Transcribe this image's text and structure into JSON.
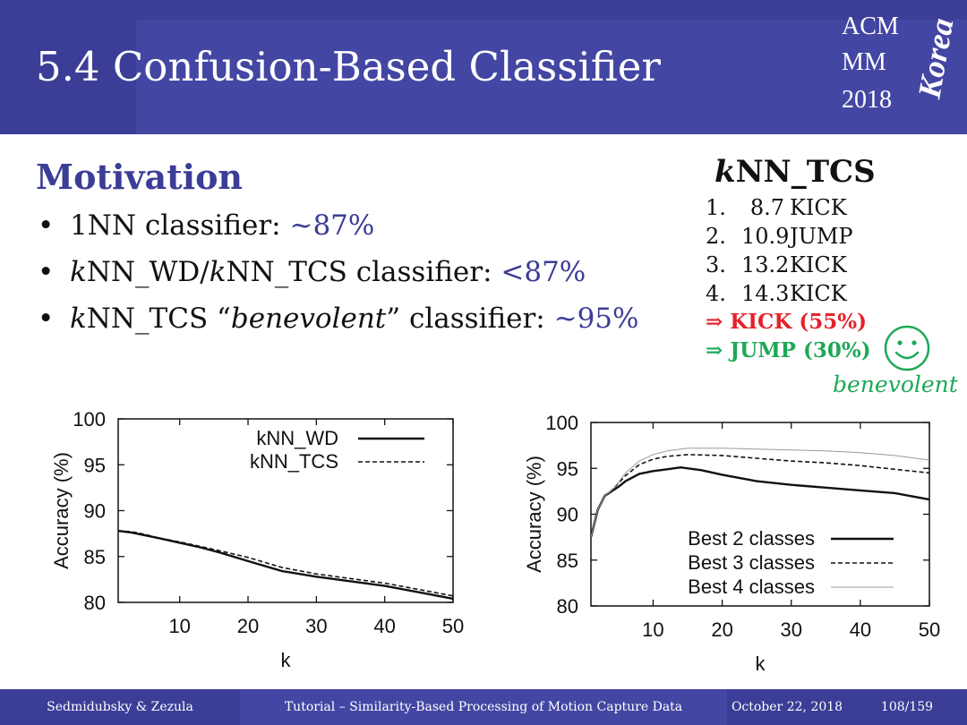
{
  "slide": {
    "title": "5.4 Confusion-Based Classifier",
    "logo": {
      "line1": "ACM",
      "line2": "MM",
      "line3": "2018",
      "script": "Korea"
    },
    "motivation": {
      "heading": "Motivation",
      "bullets": [
        {
          "k": "",
          "label": "1NN classifier: ",
          "value": "~87%"
        },
        {
          "k": "k",
          "label": "NN_WD/",
          "k2": "k",
          "label2": "NN_TCS classifier: ",
          "value": "<87%"
        },
        {
          "k": "k",
          "label": "NN_TCS “",
          "italic": "benevolent",
          "label2": "” classifier: ",
          "value": "~95%"
        }
      ]
    },
    "knn_tcs": {
      "title_k": "k",
      "title_rest": "NN_TCS",
      "ranking": [
        {
          "num": "1.",
          "dist": "8.7",
          "label": "KICK"
        },
        {
          "num": "2.",
          "dist": "10.9",
          "label": "JUMP"
        },
        {
          "num": "3.",
          "dist": "13.2",
          "label": "KICK"
        },
        {
          "num": "4.",
          "dist": "14.3",
          "label": "KICK"
        }
      ],
      "result_kick": "⇒ KICK (55%)",
      "result_jump": "⇒ JUMP (30%)",
      "benevolent": "benevolent",
      "colors": {
        "kick": "#e5222b",
        "jump": "#1fa857"
      }
    },
    "footer": {
      "authors": "Sedmidubsky & Zezula",
      "tutorial": "Tutorial – Similarity-Based Processing of Motion Capture Data",
      "date": "October 22, 2018",
      "page": "108/159"
    }
  },
  "chart_data": [
    {
      "type": "line",
      "xlabel": "k",
      "ylabel": "Accuracy (%)",
      "xlim": [
        1,
        50
      ],
      "ylim": [
        80,
        100
      ],
      "xticks": [
        10,
        20,
        30,
        40,
        50
      ],
      "yticks": [
        80,
        85,
        90,
        95,
        100
      ],
      "legend": "top-right",
      "series": [
        {
          "name": "kNN_WD",
          "style": "solid",
          "x": [
            1,
            3,
            5,
            7,
            10,
            13,
            16,
            20,
            25,
            30,
            35,
            40,
            45,
            50
          ],
          "y": [
            87.8,
            87.6,
            87.3,
            87.0,
            86.5,
            86.0,
            85.4,
            84.5,
            83.4,
            82.8,
            82.3,
            81.8,
            81.1,
            80.4
          ]
        },
        {
          "name": "kNN_TCS",
          "style": "dashed",
          "x": [
            1,
            3,
            5,
            7,
            10,
            13,
            16,
            20,
            25,
            30,
            35,
            40,
            45,
            50
          ],
          "y": [
            87.8,
            87.7,
            87.4,
            87.0,
            86.6,
            86.1,
            85.6,
            84.9,
            83.8,
            83.1,
            82.6,
            82.1,
            81.4,
            80.7
          ]
        }
      ]
    },
    {
      "type": "line",
      "xlabel": "k",
      "ylabel": "Accuracy (%)",
      "xlim": [
        1,
        50
      ],
      "ylim": [
        80,
        100
      ],
      "xticks": [
        10,
        20,
        30,
        40,
        50
      ],
      "yticks": [
        80,
        85,
        90,
        95,
        100
      ],
      "legend": "bottom-right",
      "series": [
        {
          "name": "Best 2 classes",
          "style": "solid",
          "x": [
            1,
            2,
            3,
            4,
            5,
            6,
            8,
            10,
            12,
            14,
            17,
            20,
            25,
            30,
            35,
            40,
            45,
            50
          ],
          "y": [
            87.5,
            90.5,
            92.0,
            92.5,
            93.0,
            93.6,
            94.4,
            94.7,
            94.9,
            95.1,
            94.8,
            94.3,
            93.6,
            93.2,
            92.9,
            92.6,
            92.3,
            91.6
          ]
        },
        {
          "name": "Best 3 classes",
          "style": "dashed",
          "x": [
            1,
            2,
            3,
            4,
            5,
            6,
            8,
            10,
            12,
            15,
            20,
            25,
            30,
            35,
            40,
            45,
            50
          ],
          "y": [
            87.5,
            90.5,
            92.0,
            92.6,
            93.4,
            94.2,
            95.4,
            96.0,
            96.3,
            96.5,
            96.4,
            96.1,
            95.8,
            95.6,
            95.3,
            94.9,
            94.5
          ]
        },
        {
          "name": "Best 4 classes",
          "style": "thin",
          "x": [
            1,
            2,
            3,
            4,
            5,
            6,
            8,
            10,
            12,
            15,
            20,
            25,
            30,
            35,
            40,
            45,
            50
          ],
          "y": [
            87.5,
            90.5,
            92.0,
            92.6,
            93.5,
            94.5,
            95.8,
            96.5,
            96.9,
            97.2,
            97.2,
            97.1,
            97.0,
            96.9,
            96.7,
            96.4,
            95.9
          ]
        }
      ]
    }
  ]
}
